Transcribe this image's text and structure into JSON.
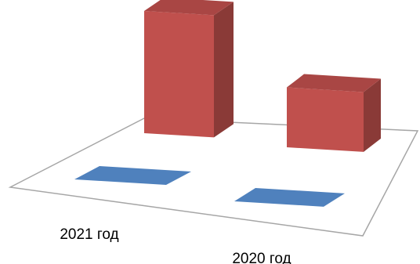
{
  "chart_data": {
    "type": "bar",
    "categories": [
      "2021 год",
      "2020 год"
    ],
    "series": [
      {
        "values": [
          0,
          0
        ]
      },
      {
        "values": [
          100,
          49
        ]
      }
    ],
    "title": "",
    "xlabel": "",
    "ylabel": "",
    "ylim": [
      0,
      100
    ],
    "grid": false,
    "legend": "none"
  },
  "colors": {
    "front_series": "#4f81bd",
    "back_series": "#c0504d",
    "floor_edge": "#a6a6a6",
    "background": "#ffffff"
  }
}
